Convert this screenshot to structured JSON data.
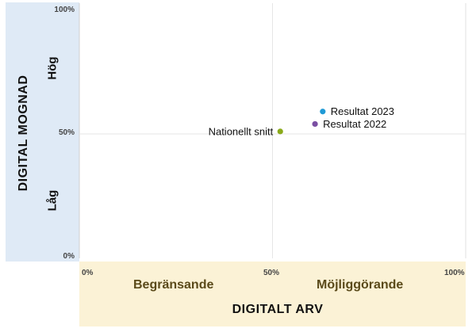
{
  "chart_data": {
    "type": "scatter",
    "xlabel": "DIGITALT ARV",
    "ylabel": "DIGITAL MOGNAD",
    "xlim": [
      0,
      100
    ],
    "ylim": [
      0,
      100
    ],
    "x_ticks": [
      "0%",
      "50%",
      "100%"
    ],
    "y_ticks": [
      "100%",
      "50%",
      "0%"
    ],
    "x_categories": {
      "low": "Begränsande",
      "high": "Möjliggörande"
    },
    "y_categories": {
      "low": "Låg",
      "high": "Hög"
    },
    "series": [
      {
        "name": "Resultat 2023",
        "x": 63,
        "y": 59,
        "color": "#1f9ad6"
      },
      {
        "name": "Resultat 2022",
        "x": 61,
        "y": 54,
        "color": "#7b4fa3"
      },
      {
        "name": "Nationellt snitt",
        "x": 52,
        "y": 51,
        "color": "#8aaa1a"
      }
    ]
  }
}
